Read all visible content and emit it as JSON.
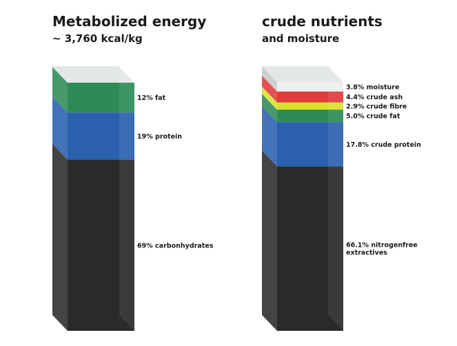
{
  "chart_data": [
    {
      "type": "stacked-bar",
      "title": "Metabolized energy",
      "subtitle": "~ 3,760 kcal/kg",
      "segments": [
        {
          "label": "69% carbonhydrates",
          "value": 69,
          "color": "#2a2a2a"
        },
        {
          "label": "19% protein",
          "value": 19,
          "color": "#2b60ae"
        },
        {
          "label": "12% fat",
          "value": 12,
          "color": "#2e8b57"
        }
      ]
    },
    {
      "type": "stacked-bar",
      "title": "crude nutrients",
      "subtitle": "and moisture",
      "segments": [
        {
          "label": "66.1% nitrogenfree extractives",
          "value": 66.1,
          "color": "#2a2a2a"
        },
        {
          "label": "17.8% crude protein",
          "value": 17.8,
          "color": "#2b60ae"
        },
        {
          "label": "5.0% crude fat",
          "value": 5.0,
          "color": "#2e8b57"
        },
        {
          "label": "2.9% crude fibre",
          "value": 2.9,
          "color": "#d9e030"
        },
        {
          "label": "4.4% crude ash",
          "value": 4.4,
          "color": "#e03a3a"
        },
        {
          "label": "3.8% moisture",
          "value": 3.8,
          "color": "#ececec"
        }
      ]
    }
  ]
}
